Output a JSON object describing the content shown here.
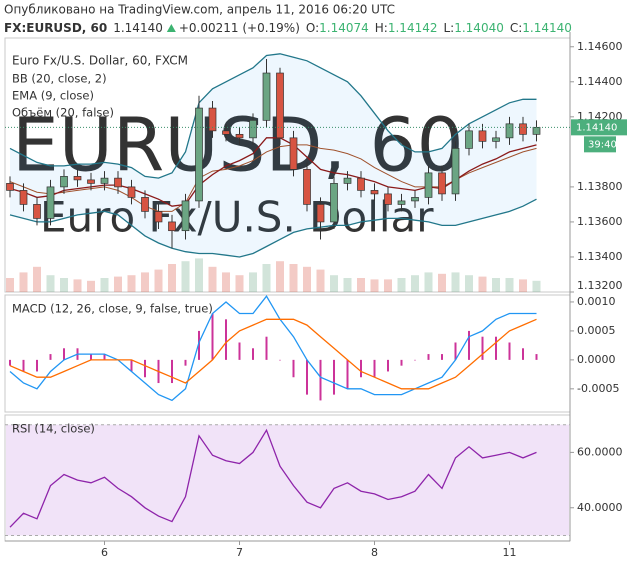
{
  "header": {
    "published": "Опубликовано на TradingView.com, апрель 11, 2016 06:20 UTC",
    "symbol": "FX:EURUSD, 60",
    "price": "1.14140",
    "change": "+0.00211 (+0.19%)",
    "ohlc": [
      {
        "label": "O:",
        "value": "1.14074"
      },
      {
        "label": "H:",
        "value": "1.14142"
      },
      {
        "label": "L:",
        "value": "1.14040"
      },
      {
        "label": "C:",
        "value": "1.14140"
      }
    ]
  },
  "chart_data": [
    {
      "type": "candlestick",
      "title": "Euro Fx/U.S. Dollar, 60, FXCM",
      "studies": [
        "BB (20, close, 2)",
        "EMA (9, close)",
        "Объём (20, false)"
      ],
      "watermark": {
        "symbol": "EURUSD, 60",
        "description": "Euro Fx/U.S. Dollar"
      },
      "countdown": "39:40",
      "categories": [
        null,
        null,
        null,
        null,
        null,
        null,
        null,
        "6",
        null,
        null,
        null,
        null,
        null,
        null,
        null,
        null,
        null,
        "7",
        null,
        null,
        null,
        null,
        null,
        null,
        null,
        null,
        null,
        "8",
        null,
        null,
        null,
        null,
        null,
        null,
        null,
        null,
        null,
        "11",
        null,
        null
      ],
      "open": [
        1.1382,
        1.1378,
        1.137,
        1.1362,
        1.138,
        1.1386,
        1.1384,
        1.1382,
        1.1385,
        1.138,
        1.1374,
        1.1366,
        1.136,
        1.1355,
        1.1372,
        1.1425,
        1.1412,
        1.141,
        1.1408,
        1.1418,
        1.1445,
        1.1408,
        1.139,
        1.137,
        1.136,
        1.1382,
        1.1385,
        1.1378,
        1.1376,
        1.137,
        1.1372,
        1.1374,
        1.1388,
        1.1376,
        1.1402,
        1.1412,
        1.1406,
        1.1408,
        1.1416,
        1.141
      ],
      "high": [
        1.1386,
        1.1382,
        1.1374,
        1.1384,
        1.139,
        1.139,
        1.1388,
        1.1389,
        1.1389,
        1.1384,
        1.1378,
        1.137,
        1.1364,
        1.1376,
        1.1432,
        1.1429,
        1.1416,
        1.1414,
        1.1422,
        1.1453,
        1.1448,
        1.1412,
        1.1394,
        1.1374,
        1.1386,
        1.1389,
        1.1389,
        1.1382,
        1.138,
        1.1376,
        1.1378,
        1.1392,
        1.1392,
        1.1406,
        1.1416,
        1.1416,
        1.1412,
        1.142,
        1.142,
        1.1418
      ],
      "low": [
        1.1374,
        1.1366,
        1.1358,
        1.1358,
        1.1376,
        1.138,
        1.1378,
        1.1378,
        1.1376,
        1.137,
        1.1362,
        1.1356,
        1.1345,
        1.135,
        1.1368,
        1.1408,
        1.1406,
        1.1404,
        1.1404,
        1.1414,
        1.1404,
        1.1386,
        1.1366,
        1.135,
        1.1356,
        1.1378,
        1.1374,
        1.1372,
        1.1366,
        1.1366,
        1.1368,
        1.137,
        1.1372,
        1.1372,
        1.1398,
        1.1402,
        1.1402,
        1.1404,
        1.1406,
        1.1406
      ],
      "close": [
        1.1378,
        1.137,
        1.1362,
        1.138,
        1.1386,
        1.1384,
        1.1382,
        1.1385,
        1.138,
        1.1374,
        1.1366,
        1.136,
        1.1355,
        1.1372,
        1.1425,
        1.1412,
        1.141,
        1.1408,
        1.1418,
        1.1445,
        1.1408,
        1.139,
        1.137,
        1.136,
        1.1382,
        1.1385,
        1.1378,
        1.1376,
        1.137,
        1.1372,
        1.1374,
        1.1388,
        1.1376,
        1.1402,
        1.1412,
        1.1406,
        1.1408,
        1.1416,
        1.141,
        1.1414
      ],
      "up_color": "#6ba583",
      "down_color": "#d75442",
      "bollinger": {
        "color": "#22778a",
        "mid_color": "#a0522d",
        "upper": [
          1.1402,
          1.1398,
          1.1394,
          1.1392,
          1.1392,
          1.1393,
          1.1393,
          1.1394,
          1.1393,
          1.1391,
          1.1386,
          1.1385,
          1.1388,
          1.14,
          1.1428,
          1.1436,
          1.144,
          1.1444,
          1.1448,
          1.1455,
          1.1456,
          1.1454,
          1.1452,
          1.1448,
          1.1444,
          1.144,
          1.1432,
          1.1422,
          1.1412,
          1.1404,
          1.14,
          1.14,
          1.1402,
          1.141,
          1.1416,
          1.142,
          1.1424,
          1.1428,
          1.143,
          1.143
        ],
        "mid": [
          1.1383,
          1.138,
          1.1377,
          1.1376,
          1.1377,
          1.1378,
          1.1379,
          1.138,
          1.1378,
          1.1374,
          1.1369,
          1.1366,
          1.1366,
          1.1371,
          1.1385,
          1.1389,
          1.139,
          1.1392,
          1.1395,
          1.14,
          1.1403,
          1.1404,
          1.1404,
          1.1402,
          1.1401,
          1.1399,
          1.1396,
          1.1391,
          1.1387,
          1.1383,
          1.138,
          1.138,
          1.138,
          1.1384,
          1.1388,
          1.1391,
          1.1394,
          1.1397,
          1.14,
          1.1402
        ],
        "lower": [
          1.1364,
          1.1362,
          1.136,
          1.136,
          1.1362,
          1.1364,
          1.1365,
          1.1366,
          1.1364,
          1.1358,
          1.1352,
          1.1348,
          1.1345,
          1.1343,
          1.1342,
          1.1342,
          1.1341,
          1.134,
          1.1342,
          1.1346,
          1.135,
          1.1354,
          1.1356,
          1.1357,
          1.1358,
          1.1358,
          1.136,
          1.1361,
          1.1362,
          1.1362,
          1.1361,
          1.136,
          1.1358,
          1.1358,
          1.136,
          1.1362,
          1.1364,
          1.1366,
          1.1369,
          1.1373
        ]
      },
      "ema": {
        "color": "#8b1a1a",
        "values": [
          1.1379,
          1.1377,
          1.1374,
          1.1375,
          1.1378,
          1.1379,
          1.138,
          1.1381,
          1.1381,
          1.1379,
          1.1376,
          1.1373,
          1.1369,
          1.137,
          1.1381,
          1.1387,
          1.1392,
          1.1395,
          1.1399,
          1.1408,
          1.1408,
          1.1404,
          1.1397,
          1.139,
          1.1388,
          1.1387,
          1.1385,
          1.1383,
          1.138,
          1.1379,
          1.1378,
          1.138,
          1.1379,
          1.1384,
          1.1389,
          1.1393,
          1.1396,
          1.14,
          1.1402,
          1.1404
        ]
      },
      "volume": [
        10,
        14,
        18,
        12,
        10,
        9,
        8,
        10,
        11,
        12,
        14,
        16,
        20,
        22,
        24,
        18,
        14,
        12,
        14,
        20,
        22,
        20,
        18,
        16,
        12,
        10,
        10,
        9,
        9,
        10,
        12,
        14,
        13,
        14,
        12,
        11,
        10,
        10,
        9,
        8
      ],
      "ylim": [
        1.132,
        1.1465
      ],
      "yticks": [
        {
          "value": 1.146,
          "label": "1.14600"
        },
        {
          "value": 1.144,
          "label": "1.14400"
        },
        {
          "value": 1.142,
          "label": "1.14200"
        },
        {
          "value": 1.138,
          "label": "1.13800"
        },
        {
          "value": 1.136,
          "label": "1.13600"
        },
        {
          "value": 1.134,
          "label": "1.13400"
        },
        {
          "value": 1.132,
          "label": "1.13200"
        }
      ]
    },
    {
      "type": "line",
      "title": "MACD (12, 26, close, 9, false, true)",
      "series": [
        {
          "color": "#2196f3",
          "values": [
            -0.0002,
            -0.0004,
            -0.0005,
            -0.0002,
            0.0,
            0.0001,
            0.0001,
            0.0001,
            0.0,
            -0.0002,
            -0.0004,
            -0.0006,
            -0.0007,
            -0.0005,
            0.0003,
            0.0008,
            0.001,
            0.0008,
            0.0008,
            0.0011,
            0.0007,
            0.0004,
            0.0,
            -0.0003,
            -0.0004,
            -0.0005,
            -0.0005,
            -0.0006,
            -0.0006,
            -0.0006,
            -0.0005,
            -0.0004,
            -0.0003,
            0.0,
            0.0004,
            0.0005,
            0.0007,
            0.0008,
            0.0008,
            0.0008
          ]
        },
        {
          "color": "#ff6d00",
          "values": [
            -0.0001,
            -0.0002,
            -0.0003,
            -0.0003,
            -0.0002,
            -0.0001,
            0.0,
            0.0,
            0.0,
            0.0,
            -0.0001,
            -0.0002,
            -0.0003,
            -0.0004,
            -0.0002,
            0.0,
            0.0003,
            0.0005,
            0.0006,
            0.0007,
            0.0007,
            0.0007,
            0.0006,
            0.0004,
            0.0002,
            0.0,
            -0.0002,
            -0.0003,
            -0.0004,
            -0.0005,
            -0.0005,
            -0.0005,
            -0.0004,
            -0.0003,
            -0.0001,
            0.0001,
            0.0003,
            0.0005,
            0.0006,
            0.0007
          ]
        },
        {
          "color": "#cc3399",
          "kind": "bar",
          "values": [
            -0.0001,
            -0.0002,
            -0.0002,
            0.0001,
            0.0002,
            0.0002,
            0.0001,
            0.0001,
            0.0,
            -0.0002,
            -0.0003,
            -0.0004,
            -0.0004,
            -0.0001,
            0.0005,
            0.0008,
            0.0007,
            0.0003,
            0.0002,
            0.0004,
            0.0,
            -0.0003,
            -0.0006,
            -0.0007,
            -0.0006,
            -0.0005,
            -0.0003,
            -0.0003,
            -0.0002,
            -0.0001,
            0.0,
            0.0001,
            0.0001,
            0.0003,
            0.0005,
            0.0004,
            0.0004,
            0.0003,
            0.0002,
            0.0001
          ]
        }
      ],
      "ylim": [
        -0.0009,
        0.00112
      ],
      "yticks": [
        {
          "value": 0.001,
          "label": "0.0010"
        },
        {
          "value": 0.0005,
          "label": "0.0005"
        },
        {
          "value": 0,
          "label": "0.0000"
        },
        {
          "value": -0.0005,
          "label": "-0.0005"
        }
      ]
    },
    {
      "type": "line",
      "title": "RSI (14, close)",
      "series": [
        {
          "color": "#8e24aa",
          "values": [
            33,
            38,
            36,
            48,
            52,
            50,
            49,
            51,
            47,
            44,
            40,
            37,
            35,
            44,
            66,
            59,
            57,
            56,
            60,
            68,
            55,
            48,
            42,
            40,
            47,
            49,
            46,
            45,
            43,
            44,
            46,
            52,
            47,
            58,
            62,
            58,
            59,
            60,
            58,
            60
          ]
        }
      ],
      "band": [
        30,
        70
      ],
      "band_color": "#f1e3f8",
      "ylim": [
        28,
        73.5
      ],
      "yticks": [
        {
          "value": 60,
          "label": "60.0000"
        },
        {
          "value": 40,
          "label": "40.0000"
        }
      ]
    }
  ]
}
